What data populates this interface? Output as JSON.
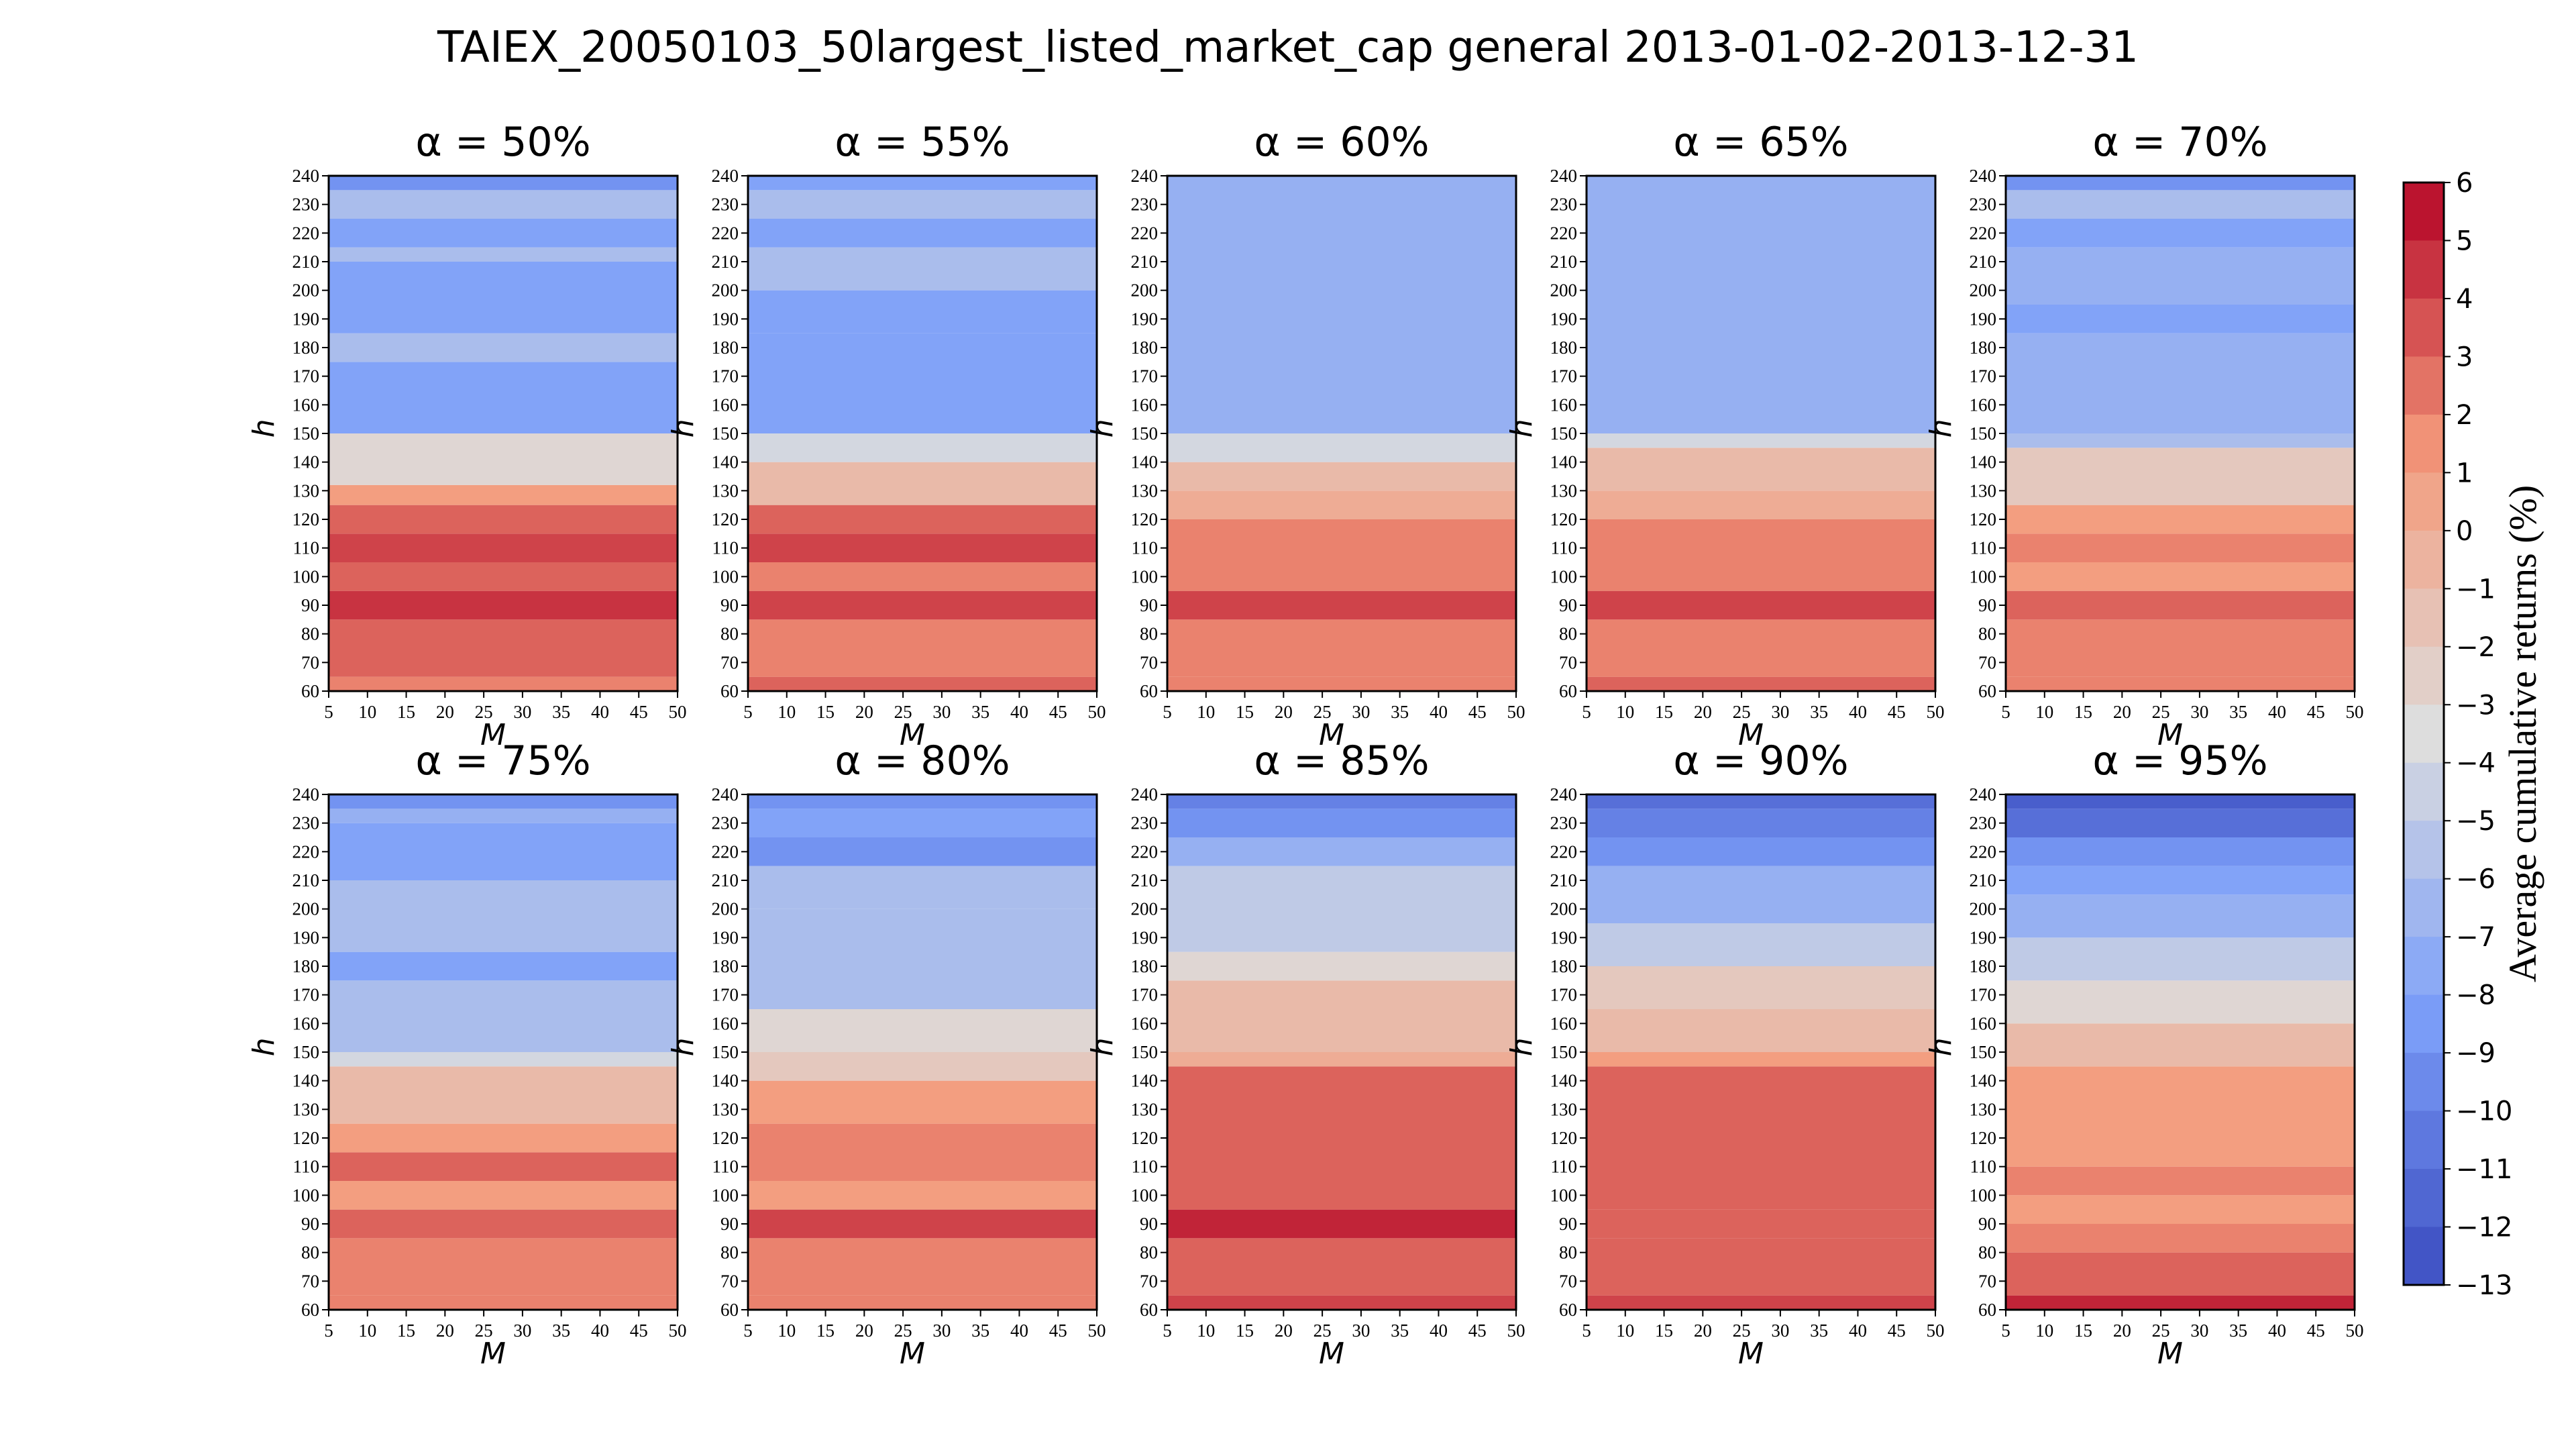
{
  "chart_data": {
    "type": "heatmap",
    "title": "TAIEX_20050103_50largest_listed_market_cap general 2013-01-02-2013-12-31",
    "xlabel": "M",
    "ylabel": "h",
    "x_ticks": [
      5,
      10,
      15,
      20,
      25,
      30,
      35,
      40,
      45,
      50
    ],
    "y_ticks": [
      60,
      70,
      80,
      90,
      100,
      110,
      120,
      130,
      140,
      150,
      160,
      170,
      180,
      190,
      200,
      210,
      220,
      230,
      240
    ],
    "xlim": [
      5,
      50
    ],
    "ylim": [
      60,
      240
    ],
    "colorbar": {
      "label": "Average cumulative returns (%)",
      "min": -13,
      "max": 6,
      "ticks": [
        "6",
        "5",
        "4",
        "3",
        "2",
        "1",
        "0",
        "−1",
        "−2",
        "−3",
        "−4",
        "−5",
        "−6",
        "−7",
        "−8",
        "−9",
        "−10",
        "−11",
        "−12",
        "−13"
      ],
      "colormap": "coolwarm"
    },
    "panels": [
      {
        "title": "α = 50%",
        "bands": [
          {
            "h": [
              60,
              65
            ],
            "value": 2
          },
          {
            "h": [
              65,
              85
            ],
            "value": 3
          },
          {
            "h": [
              85,
              95
            ],
            "value": 4.5
          },
          {
            "h": [
              95,
              105
            ],
            "value": 3
          },
          {
            "h": [
              105,
              115
            ],
            "value": 4
          },
          {
            "h": [
              115,
              125
            ],
            "value": 3
          },
          {
            "h": [
              125,
              132
            ],
            "value": 1
          },
          {
            "h": [
              132,
              150
            ],
            "value": -3
          },
          {
            "h": [
              150,
              175
            ],
            "value": -8
          },
          {
            "h": [
              175,
              185
            ],
            "value": -6
          },
          {
            "h": [
              185,
              210
            ],
            "value": -8
          },
          {
            "h": [
              210,
              215
            ],
            "value": -6
          },
          {
            "h": [
              215,
              225
            ],
            "value": -8
          },
          {
            "h": [
              225,
              235
            ],
            "value": -6
          },
          {
            "h": [
              235,
              240
            ],
            "value": -9
          }
        ]
      },
      {
        "title": "α = 55%",
        "bands": [
          {
            "h": [
              60,
              65
            ],
            "value": 3
          },
          {
            "h": [
              65,
              85
            ],
            "value": 2
          },
          {
            "h": [
              85,
              95
            ],
            "value": 4
          },
          {
            "h": [
              95,
              105
            ],
            "value": 2
          },
          {
            "h": [
              105,
              115
            ],
            "value": 4
          },
          {
            "h": [
              115,
              125
            ],
            "value": 3
          },
          {
            "h": [
              125,
              140
            ],
            "value": -1
          },
          {
            "h": [
              140,
              150
            ],
            "value": -4
          },
          {
            "h": [
              150,
              185
            ],
            "value": -8
          },
          {
            "h": [
              185,
              200
            ],
            "value": -8
          },
          {
            "h": [
              200,
              215
            ],
            "value": -6
          },
          {
            "h": [
              215,
              225
            ],
            "value": -8
          },
          {
            "h": [
              225,
              235
            ],
            "value": -6
          },
          {
            "h": [
              235,
              240
            ],
            "value": -8
          }
        ]
      },
      {
        "title": "α = 60%",
        "bands": [
          {
            "h": [
              60,
              65
            ],
            "value": 2
          },
          {
            "h": [
              65,
              85
            ],
            "value": 2
          },
          {
            "h": [
              85,
              95
            ],
            "value": 4
          },
          {
            "h": [
              95,
              120
            ],
            "value": 2
          },
          {
            "h": [
              120,
              130
            ],
            "value": 0
          },
          {
            "h": [
              130,
              140
            ],
            "value": -1
          },
          {
            "h": [
              140,
              150
            ],
            "value": -4
          },
          {
            "h": [
              150,
              165
            ],
            "value": -7
          },
          {
            "h": [
              165,
              240
            ],
            "value": -7
          }
        ]
      },
      {
        "title": "α = 65%",
        "bands": [
          {
            "h": [
              60,
              65
            ],
            "value": 3
          },
          {
            "h": [
              65,
              85
            ],
            "value": 2
          },
          {
            "h": [
              85,
              95
            ],
            "value": 4
          },
          {
            "h": [
              95,
              120
            ],
            "value": 2
          },
          {
            "h": [
              120,
              130
            ],
            "value": 0
          },
          {
            "h": [
              130,
              145
            ],
            "value": -1
          },
          {
            "h": [
              145,
              150
            ],
            "value": -4
          },
          {
            "h": [
              150,
              240
            ],
            "value": -7
          }
        ]
      },
      {
        "title": "α = 70%",
        "bands": [
          {
            "h": [
              60,
              65
            ],
            "value": 2
          },
          {
            "h": [
              65,
              85
            ],
            "value": 2
          },
          {
            "h": [
              85,
              95
            ],
            "value": 3
          },
          {
            "h": [
              95,
              105
            ],
            "value": 1
          },
          {
            "h": [
              105,
              115
            ],
            "value": 2
          },
          {
            "h": [
              115,
              125
            ],
            "value": 1
          },
          {
            "h": [
              125,
              145
            ],
            "value": -2
          },
          {
            "h": [
              145,
              150
            ],
            "value": -6
          },
          {
            "h": [
              150,
              185
            ],
            "value": -7
          },
          {
            "h": [
              185,
              195
            ],
            "value": -8
          },
          {
            "h": [
              195,
              215
            ],
            "value": -7
          },
          {
            "h": [
              215,
              225
            ],
            "value": -8
          },
          {
            "h": [
              225,
              235
            ],
            "value": -6
          },
          {
            "h": [
              235,
              240
            ],
            "value": -9
          }
        ]
      },
      {
        "title": "α = 75%",
        "bands": [
          {
            "h": [
              60,
              65
            ],
            "value": 2
          },
          {
            "h": [
              65,
              85
            ],
            "value": 2
          },
          {
            "h": [
              85,
              95
            ],
            "value": 3
          },
          {
            "h": [
              95,
              105
            ],
            "value": 1
          },
          {
            "h": [
              105,
              115
            ],
            "value": 3
          },
          {
            "h": [
              115,
              125
            ],
            "value": 1
          },
          {
            "h": [
              125,
              145
            ],
            "value": -1
          },
          {
            "h": [
              145,
              150
            ],
            "value": -4
          },
          {
            "h": [
              150,
              175
            ],
            "value": -6
          },
          {
            "h": [
              175,
              185
            ],
            "value": -8
          },
          {
            "h": [
              185,
              210
            ],
            "value": -6
          },
          {
            "h": [
              210,
              230
            ],
            "value": -8
          },
          {
            "h": [
              230,
              235
            ],
            "value": -7
          },
          {
            "h": [
              235,
              240
            ],
            "value": -9
          }
        ]
      },
      {
        "title": "α = 80%",
        "bands": [
          {
            "h": [
              60,
              65
            ],
            "value": 2
          },
          {
            "h": [
              65,
              85
            ],
            "value": 2
          },
          {
            "h": [
              85,
              95
            ],
            "value": 4
          },
          {
            "h": [
              95,
              105
            ],
            "value": 1
          },
          {
            "h": [
              105,
              125
            ],
            "value": 2
          },
          {
            "h": [
              125,
              140
            ],
            "value": 1
          },
          {
            "h": [
              140,
              150
            ],
            "value": -2
          },
          {
            "h": [
              150,
              165
            ],
            "value": -3
          },
          {
            "h": [
              165,
              200
            ],
            "value": -6
          },
          {
            "h": [
              200,
              215
            ],
            "value": -6
          },
          {
            "h": [
              215,
              225
            ],
            "value": -9
          },
          {
            "h": [
              225,
              235
            ],
            "value": -8
          },
          {
            "h": [
              235,
              240
            ],
            "value": -9
          }
        ]
      },
      {
        "title": "α = 85%",
        "bands": [
          {
            "h": [
              60,
              65
            ],
            "value": 4
          },
          {
            "h": [
              65,
              85
            ],
            "value": 3
          },
          {
            "h": [
              85,
              95
            ],
            "value": 5
          },
          {
            "h": [
              95,
              145
            ],
            "value": 3
          },
          {
            "h": [
              145,
              150
            ],
            "value": 0
          },
          {
            "h": [
              150,
              175
            ],
            "value": -1
          },
          {
            "h": [
              175,
              185
            ],
            "value": -3
          },
          {
            "h": [
              185,
              215
            ],
            "value": -5
          },
          {
            "h": [
              215,
              225
            ],
            "value": -7
          },
          {
            "h": [
              225,
              235
            ],
            "value": -9
          },
          {
            "h": [
              235,
              240
            ],
            "value": -10
          }
        ]
      },
      {
        "title": "α = 90%",
        "bands": [
          {
            "h": [
              60,
              65
            ],
            "value": 4
          },
          {
            "h": [
              65,
              85
            ],
            "value": 3
          },
          {
            "h": [
              85,
              95
            ],
            "value": 3
          },
          {
            "h": [
              95,
              145
            ],
            "value": 3
          },
          {
            "h": [
              145,
              150
            ],
            "value": 1
          },
          {
            "h": [
              150,
              165
            ],
            "value": -1
          },
          {
            "h": [
              165,
              180
            ],
            "value": -2
          },
          {
            "h": [
              180,
              195
            ],
            "value": -5
          },
          {
            "h": [
              195,
              215
            ],
            "value": -7
          },
          {
            "h": [
              215,
              225
            ],
            "value": -9
          },
          {
            "h": [
              225,
              235
            ],
            "value": -10
          },
          {
            "h": [
              235,
              240
            ],
            "value": -11
          }
        ]
      },
      {
        "title": "α = 95%",
        "bands": [
          {
            "h": [
              60,
              65
            ],
            "value": 5
          },
          {
            "h": [
              65,
              80
            ],
            "value": 3
          },
          {
            "h": [
              80,
              90
            ],
            "value": 2
          },
          {
            "h": [
              90,
              100
            ],
            "value": 1
          },
          {
            "h": [
              100,
              110
            ],
            "value": 2
          },
          {
            "h": [
              110,
              145
            ],
            "value": 1
          },
          {
            "h": [
              145,
              160
            ],
            "value": -1
          },
          {
            "h": [
              160,
              175
            ],
            "value": -3
          },
          {
            "h": [
              175,
              190
            ],
            "value": -5
          },
          {
            "h": [
              190,
              205
            ],
            "value": -7
          },
          {
            "h": [
              205,
              215
            ],
            "value": -8
          },
          {
            "h": [
              215,
              225
            ],
            "value": -9
          },
          {
            "h": [
              225,
              235
            ],
            "value": -11
          },
          {
            "h": [
              235,
              240
            ],
            "value": -12
          }
        ]
      }
    ]
  }
}
